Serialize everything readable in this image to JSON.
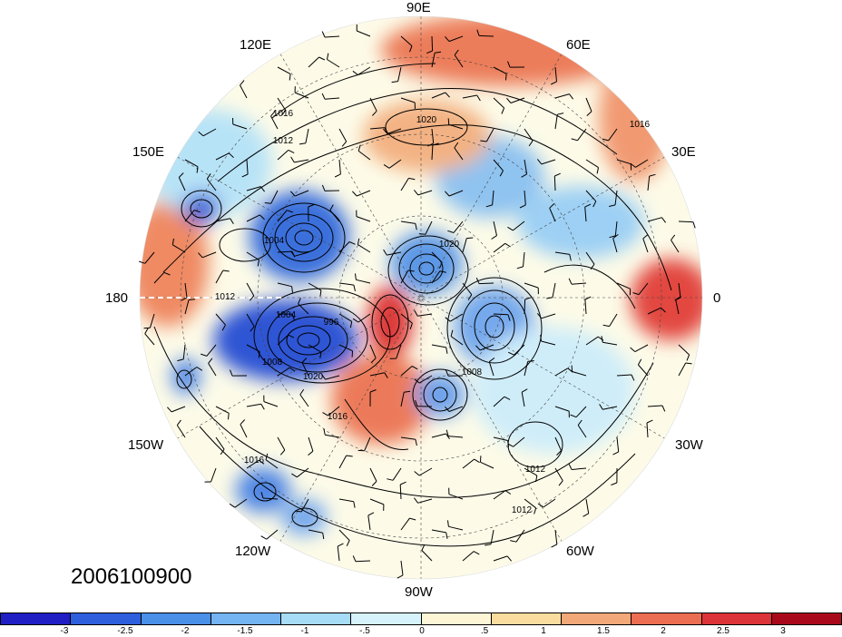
{
  "map": {
    "projection": "north-polar-stereographic",
    "field": "sea-level pressure contours with shaded anomaly and wind barbs",
    "date_label": "2006100900",
    "longitude_labels": [
      "90E",
      "60E",
      "120E",
      "30E",
      "150E",
      "180",
      "0",
      "150W",
      "30W",
      "120W",
      "60W",
      "90W"
    ],
    "contour_labels": [
      "1020",
      "1016",
      "1012",
      "1004",
      "1012",
      "1004",
      "996",
      "1008",
      "1020",
      "1020",
      "1008",
      "1016",
      "1016",
      "1012",
      "1012",
      "1016"
    ],
    "colors": {
      "land_ocean_background": "#fdfbe8",
      "contour_line": "#000000"
    }
  },
  "colorbar": {
    "swatch_colors": [
      "#1f1fc4",
      "#2e5fdc",
      "#4a8fe8",
      "#74b4f2",
      "#a6dcf6",
      "#d6f2fa",
      "#fdf6d6",
      "#f9dc9e",
      "#f2a878",
      "#ec6e52",
      "#dc3438",
      "#a80a1c"
    ],
    "tick_labels": [
      "-3",
      "-2.5",
      "-2",
      "-1.5",
      "-1",
      "-.5",
      "0",
      ".5",
      "1",
      "1.5",
      "2",
      "2.5",
      "3"
    ]
  }
}
